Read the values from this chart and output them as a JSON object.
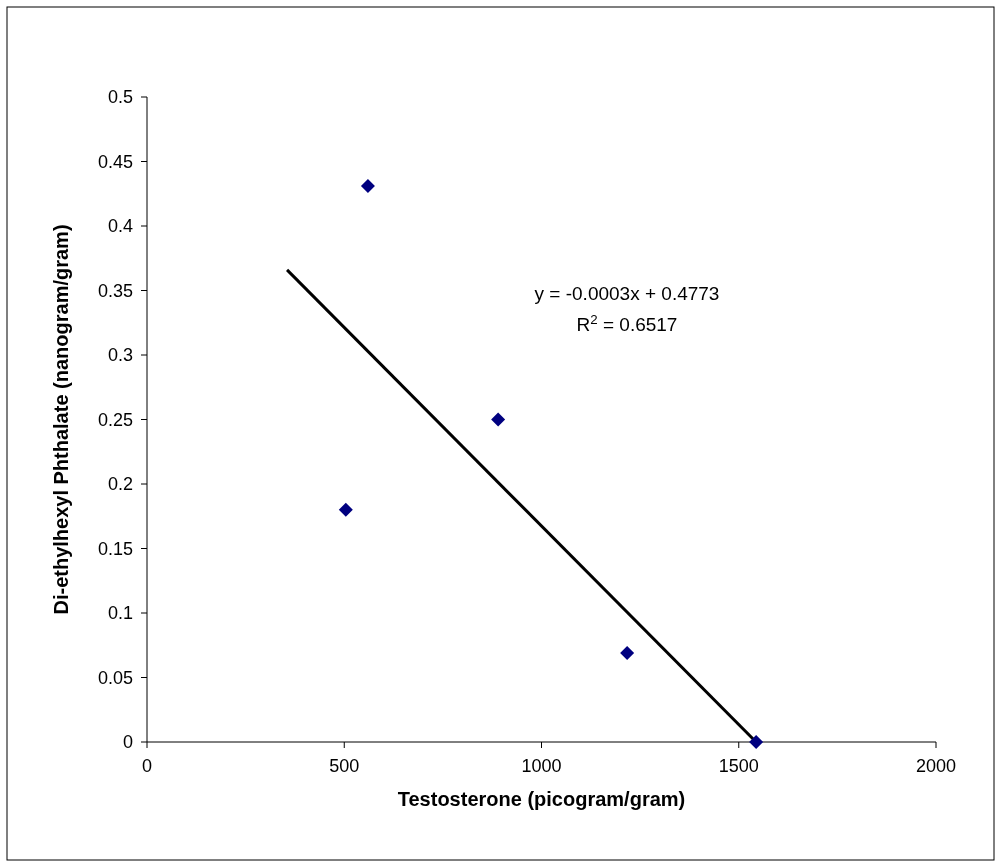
{
  "chart_data": {
    "type": "scatter",
    "xlabel": "Testosterone (picogram/gram)",
    "ylabel": "Di-ethylhexyl Phthalate (nanogram/gram)",
    "xlim": [
      0,
      2000
    ],
    "xticks": [
      0,
      500,
      1000,
      1500,
      2000
    ],
    "ylim": [
      0,
      0.5
    ],
    "yticks": [
      0,
      0.05,
      0.1,
      0.15,
      0.2,
      0.25,
      0.3,
      0.35,
      0.4,
      0.45,
      0.5
    ],
    "grid": false,
    "series": [
      {
        "marker": "diamond",
        "color": "#000080",
        "x": [
          504,
          560,
          890,
          1217,
          1544
        ],
        "values": [
          0.18,
          0.431,
          0.25,
          0.069,
          0
        ]
      },
      {
        "type": "line",
        "color": "#000000",
        "x": [
          355,
          1544
        ],
        "values": [
          0.366,
          0
        ],
        "line_style": "solid"
      }
    ],
    "annotations": [
      "y = -0.0003x + 0.4773",
      "R$^{2}$ = 0.6517"
    ]
  }
}
